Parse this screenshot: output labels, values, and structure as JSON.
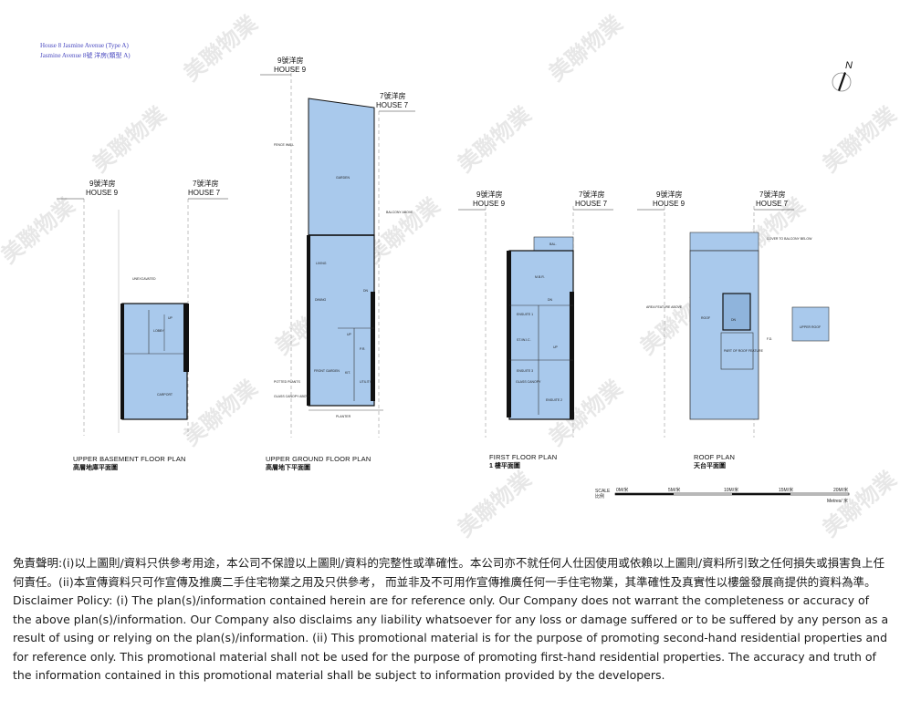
{
  "header": {
    "line1": "House 8 Jasmine Avenue (Type A)",
    "line2": "Jasmine Avenue 8號 洋房(類型 A)"
  },
  "compass": {
    "label": "N"
  },
  "house_labels": {
    "h9_zh": "9號洋房",
    "h9_en": "HOUSE 9",
    "h7_zh": "7號洋房",
    "h7_en": "HOUSE 7"
  },
  "plans": {
    "upper_basement": {
      "title_en": "UPPER BASEMENT FLOOR PLAN",
      "title_zh": "高層地庫平面圖",
      "rooms": [
        "LOBBY",
        "CARPORT",
        "UNEXCAVATED",
        "UP"
      ]
    },
    "upper_ground": {
      "title_en": "UPPER GROUND FLOOR PLAN",
      "title_zh": "高層地下平面圖",
      "rooms": [
        "GARDEN",
        "LIVING",
        "DINING",
        "KIT.",
        "P.R.",
        "UTILITY",
        "FENCE WALL",
        "BALCONY ABOVE",
        "POTTED PLANTS",
        "GLASS CANOPY ABOVE",
        "PLANTER",
        "FRONT GARDEN",
        "DN",
        "UP"
      ]
    },
    "first_floor": {
      "title_en": "FIRST FLOOR PLAN",
      "title_zh": "1 樓平面圖",
      "rooms": [
        "BAL.",
        "M.B.R.",
        "ENSUITE 1",
        "ST./W.I.C.",
        "ENSUITE 3",
        "ENSUITE 2",
        "GLASS CANOPY",
        "DN",
        "UP"
      ]
    },
    "roof": {
      "title_en": "ROOF PLAN",
      "title_zh": "天台平面圖",
      "rooms": [
        "ROOF",
        "UPPER ROOF",
        "DN",
        "COVER TO BALCONY BELOW",
        "AREA FEATURE ABOVE",
        "F.D.",
        "PART OF ROOF FEATURE"
      ]
    }
  },
  "scale": {
    "label": "SCALE",
    "label_zh": "比例",
    "ticks": [
      "0M/米",
      "5M/米",
      "10M/米",
      "15M/米",
      "20M/米"
    ],
    "unit": "Metres/ 米"
  },
  "watermark": {
    "text": "美聯物業"
  },
  "disclaimer": {
    "zh": "免責聲明:(i)以上圖則/資料只供參考用途，本公司不保證以上圖則/資料的完整性或準確性。本公司亦不就任何人仕因使用或依賴以上圖則/資料所引致之任何損失或損害負上任何責任。(ii)本宣傳資料只可作宣傳及推廣二手住宅物業之用及只供參考， 而並非及不可用作宣傳推廣任何一手住宅物業，其準確性及真實性以樓盤發展商提供的資料為準。",
    "en": "Disclaimer Policy: (i) The plan(s)/information contained herein are for reference only. Our Company does not warrant the completeness or accuracy of the above plan(s)/information. Our Company also disclaims any liability whatsoever for any loss or damage suffered or to be suffered by any person as a result of using or relying on the plan(s)/information. (ii) This promotional material is for the purpose of promoting second-hand residential properties and for reference only. This promotional material shall not be used for the purpose of promoting first-hand residential properties. The accuracy and truth of the information contained in this promotional material shall be subject to information provided by the developers."
  },
  "colors": {
    "floor_fill": "#a9c9ec",
    "wall": "#111111",
    "header_text": "#4a4ac0"
  }
}
